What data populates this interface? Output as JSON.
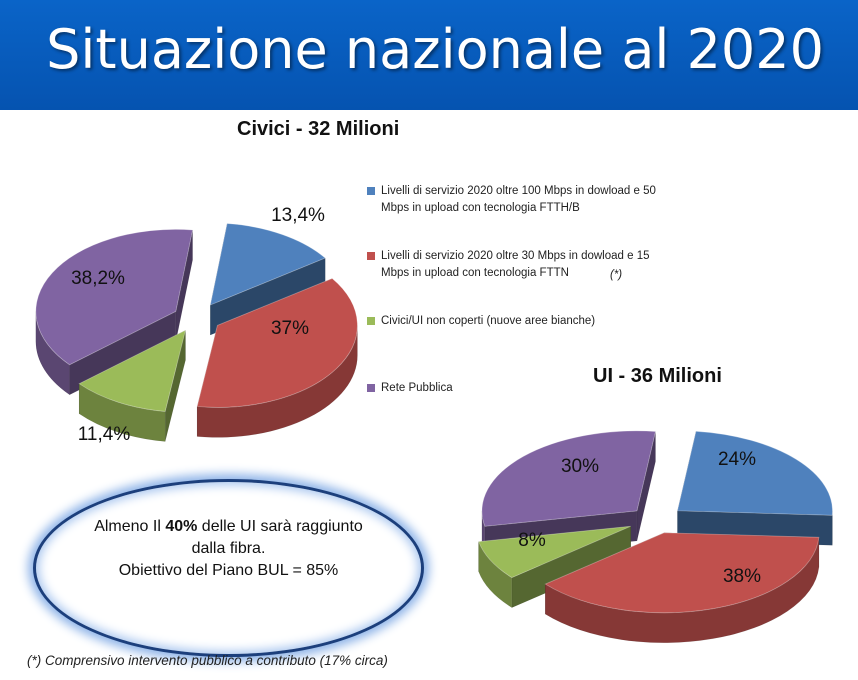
{
  "title": "Situazione nazionale al 2020",
  "colors": {
    "blue": "#4f81bd",
    "red": "#c0504d",
    "green": "#9bbb59",
    "purple": "#8064a2",
    "header": "#0a64c8"
  },
  "legend": {
    "items": [
      "Livelli di servizio 2020 oltre 100 Mbps in dowload e 50 Mbps in upload con tecnologia FTTH/B",
      "Livelli di servizio 2020 oltre 30 Mbps in dowload e 15 Mbps in upload con tecnologia FTTN",
      "Civici/UI non coperti (nuove aree bianche)",
      "Rete Pubblica"
    ],
    "note": "(*)"
  },
  "chart_data": [
    {
      "type": "pie",
      "title": "Civici - 32 Milioni",
      "categories": [
        "Livelli di servizio 2020 oltre 100 Mbps in dowload e 50 Mbps in upload con tecnologia FTTH/B",
        "Livelli di servizio 2020 oltre 30 Mbps in dowload e 15 Mbps in upload con tecnologia FTTN",
        "Civici/UI non coperti (nuove aree bianche)",
        "Rete Pubblica"
      ],
      "values": [
        13.4,
        37,
        11.4,
        38.2
      ],
      "labels": [
        "13,4%",
        "37%",
        "11,4%",
        "38,2%"
      ]
    },
    {
      "type": "pie",
      "title": "UI - 36 Milioni",
      "categories": [
        "Livelli di servizio 2020 oltre 100 Mbps in dowload e 50 Mbps in upload con tecnologia FTTH/B",
        "Livelli di servizio 2020 oltre 30 Mbps in dowload e 15 Mbps in upload con tecnologia FTTN",
        "Civici/UI non coperti (nuove aree bianche)",
        "Rete Pubblica"
      ],
      "values": [
        24,
        38,
        8,
        30
      ],
      "labels": [
        "24%",
        "38%",
        "8%",
        "30%"
      ]
    }
  ],
  "callout": {
    "line1_before": "Almeno Il ",
    "line1_bold": "40%",
    "line1_after": " delle UI sarà raggiunto",
    "line2": "dalla fibra.",
    "line3": "Obiettivo del Piano BUL = 85%"
  },
  "footnote": "(*) Comprensivo intervento pubblico a contributo (17% circa)"
}
